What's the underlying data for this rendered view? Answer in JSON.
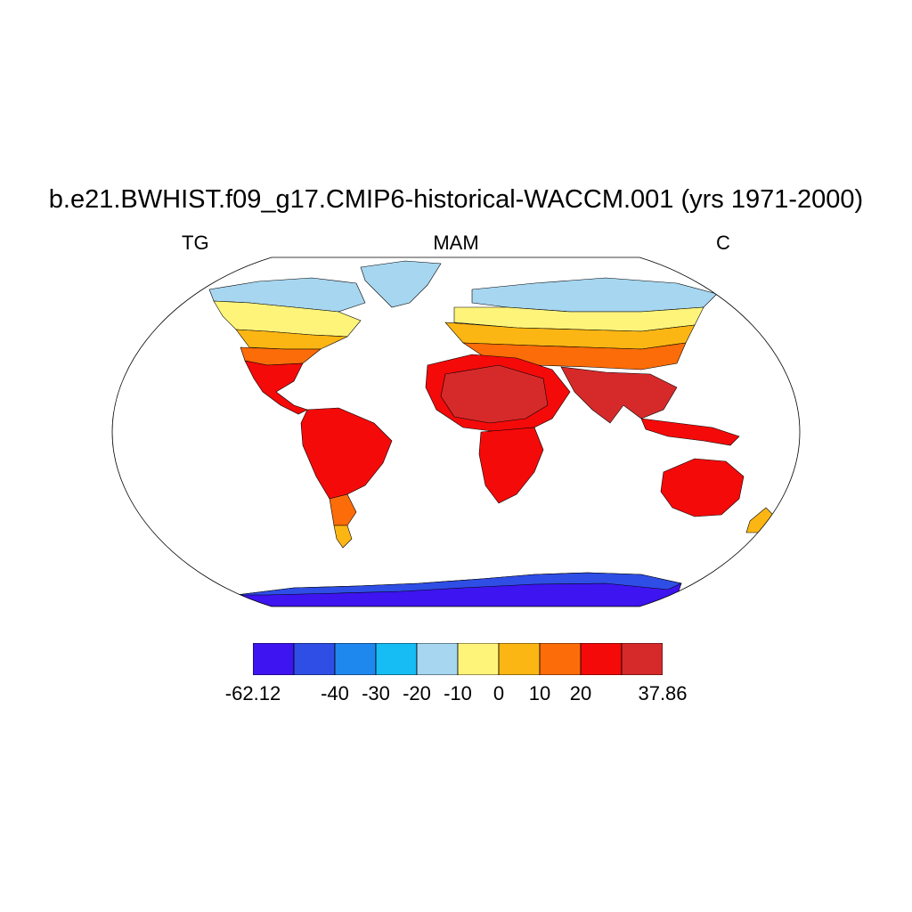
{
  "title": "b.e21.BWHIST.f09_g17.CMIP6-historical-WACCM.001 (yrs 1971-2000)",
  "left_label": "TG",
  "center_label": "MAM",
  "right_label": "C",
  "colorbar": {
    "colors": [
      "#3e14f0",
      "#2f4ee6",
      "#1f88ef",
      "#16bcf4",
      "#a6d6f0",
      "#fff47a",
      "#fcb614",
      "#fc6c08",
      "#f50a0a",
      "#d62a2a"
    ],
    "labels": [
      "-62.12",
      "-40",
      "-30",
      "-20",
      "-10",
      "0",
      "10",
      "20",
      "37.86"
    ],
    "label_bins": [
      0,
      2,
      3,
      4,
      5,
      6,
      7,
      8,
      10
    ]
  }
}
